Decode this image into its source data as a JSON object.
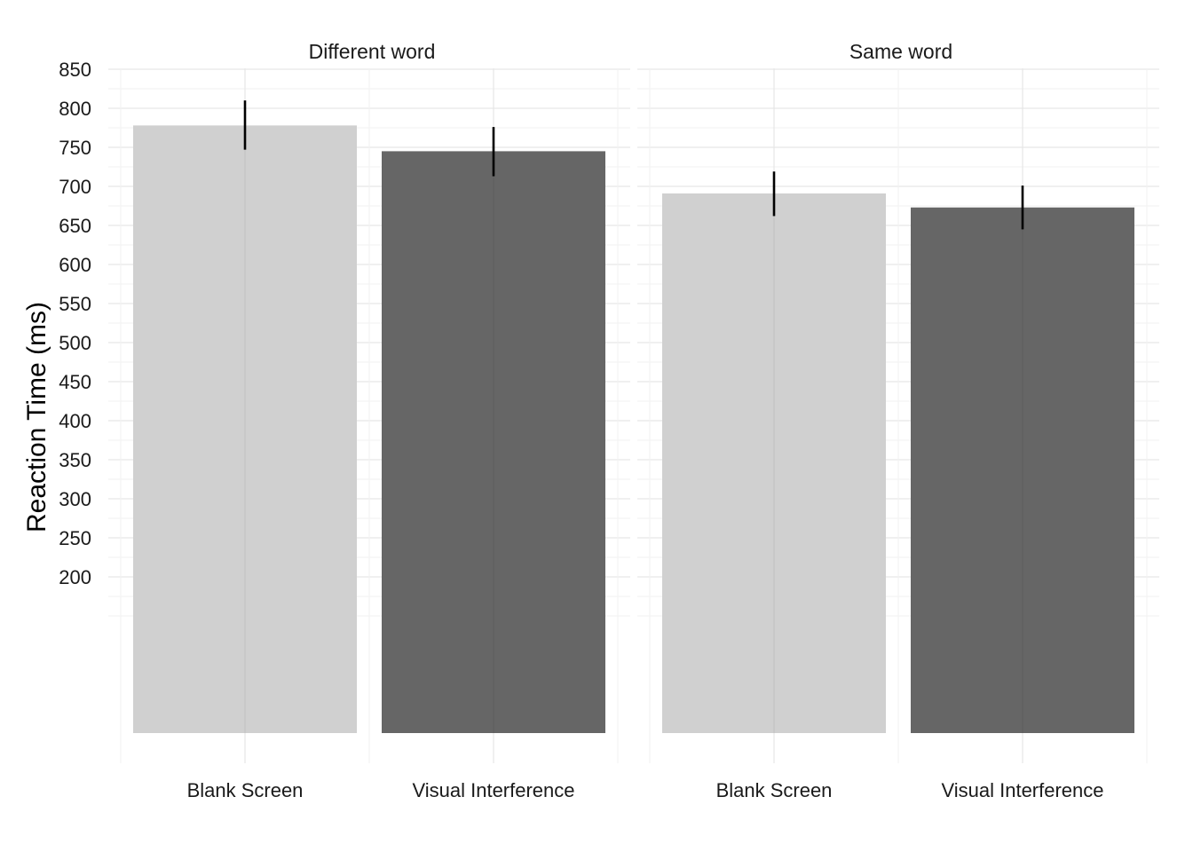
{
  "chart_data": {
    "type": "bar",
    "ylabel": "Reaction Time (ms)",
    "xlabel": "",
    "y_ticks": [
      "200",
      "250",
      "300",
      "350",
      "400",
      "450",
      "500",
      "550",
      "600",
      "650",
      "700",
      "750",
      "800",
      "850"
    ],
    "grid": true,
    "legend": "none",
    "categories": [
      "Blank Screen",
      "Visual Interference"
    ],
    "bar_colors": [
      "#d0d0d0",
      "#666666"
    ],
    "error_color": "#000000",
    "panels": [
      {
        "label": "Different word",
        "values": [
          778,
          745
        ],
        "error_low": [
          747,
          713
        ],
        "error_high": [
          810,
          776
        ]
      },
      {
        "label": "Same word",
        "values": [
          691,
          673
        ],
        "error_low": [
          662,
          645
        ],
        "error_high": [
          719,
          701
        ]
      }
    ]
  }
}
